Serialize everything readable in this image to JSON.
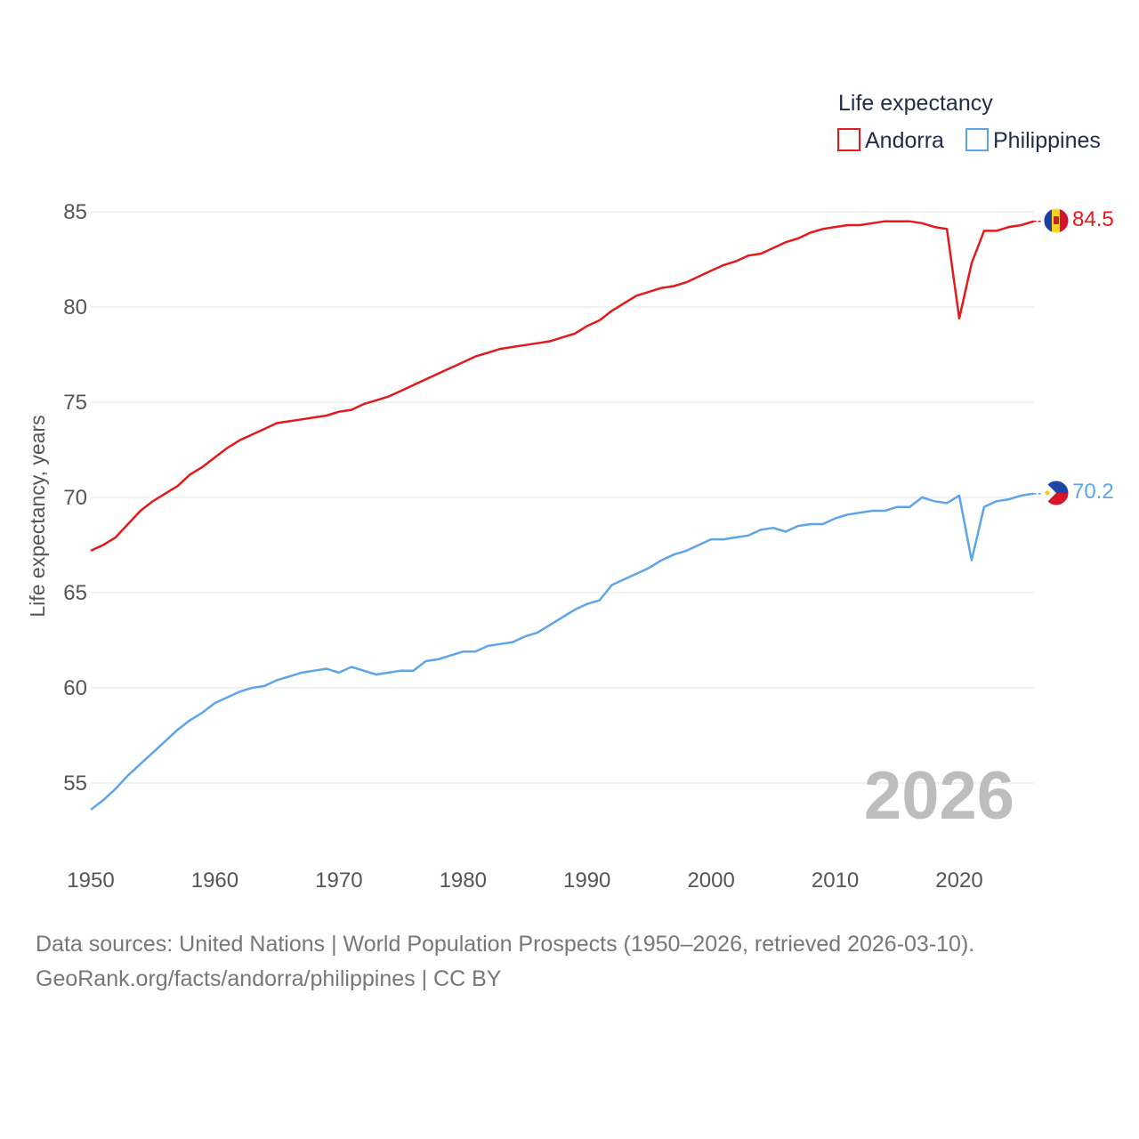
{
  "chart_data": {
    "type": "line",
    "title": "",
    "xlabel": "",
    "ylabel": "Life expectancy, years",
    "xlim": [
      1950,
      2026.5
    ],
    "ylim": [
      53,
      87
    ],
    "x_ticks": [
      1950,
      1960,
      1970,
      1980,
      1990,
      2000,
      2010,
      2020
    ],
    "y_ticks": [
      55,
      60,
      65,
      70,
      75,
      80,
      85
    ],
    "grid": true,
    "legend_title": "Life expectancy",
    "legend_position": "top-right",
    "current_year_label": "2026",
    "x": [
      1950,
      1951,
      1952,
      1953,
      1954,
      1955,
      1956,
      1957,
      1958,
      1959,
      1960,
      1961,
      1962,
      1963,
      1964,
      1965,
      1966,
      1967,
      1968,
      1969,
      1970,
      1971,
      1972,
      1973,
      1974,
      1975,
      1976,
      1977,
      1978,
      1979,
      1980,
      1981,
      1982,
      1983,
      1984,
      1985,
      1986,
      1987,
      1988,
      1989,
      1990,
      1991,
      1992,
      1993,
      1994,
      1995,
      1996,
      1997,
      1998,
      1999,
      2000,
      2001,
      2002,
      2003,
      2004,
      2005,
      2006,
      2007,
      2008,
      2009,
      2010,
      2011,
      2012,
      2013,
      2014,
      2015,
      2016,
      2017,
      2018,
      2019,
      2020,
      2021,
      2022,
      2023,
      2024,
      2025,
      2026
    ],
    "series": [
      {
        "name": "Andorra",
        "color": "#e31a1c",
        "end_label": "84.5",
        "flag": "andorra-flag-icon",
        "values": [
          67.2,
          67.5,
          67.9,
          68.6,
          69.3,
          69.8,
          70.2,
          70.6,
          71.2,
          71.6,
          72.1,
          72.6,
          73.0,
          73.3,
          73.6,
          73.9,
          74.0,
          74.1,
          74.2,
          74.3,
          74.5,
          74.6,
          74.9,
          75.1,
          75.3,
          75.6,
          75.9,
          76.2,
          76.5,
          76.8,
          77.1,
          77.4,
          77.6,
          77.8,
          77.9,
          78.0,
          78.1,
          78.2,
          78.4,
          78.6,
          79.0,
          79.3,
          79.8,
          80.2,
          80.6,
          80.8,
          81.0,
          81.1,
          81.3,
          81.6,
          81.9,
          82.2,
          82.4,
          82.7,
          82.8,
          83.1,
          83.4,
          83.6,
          83.9,
          84.1,
          84.2,
          84.3,
          84.3,
          84.4,
          84.5,
          84.5,
          84.5,
          84.4,
          84.2,
          84.1,
          79.4,
          82.3,
          84.0,
          84.0,
          84.2,
          84.3,
          84.5
        ]
      },
      {
        "name": "Philippines",
        "color": "#5da5e8",
        "end_label": "70.2",
        "flag": "philippines-flag-icon",
        "values": [
          53.6,
          54.1,
          54.7,
          55.4,
          56.0,
          56.6,
          57.2,
          57.8,
          58.3,
          58.7,
          59.2,
          59.5,
          59.8,
          60.0,
          60.1,
          60.4,
          60.6,
          60.8,
          60.9,
          61.0,
          60.8,
          61.1,
          60.9,
          60.7,
          60.8,
          60.9,
          60.9,
          61.4,
          61.5,
          61.7,
          61.9,
          61.9,
          62.2,
          62.3,
          62.4,
          62.7,
          62.9,
          63.3,
          63.7,
          64.1,
          64.4,
          64.6,
          65.4,
          65.7,
          66.0,
          66.3,
          66.7,
          67.0,
          67.2,
          67.5,
          67.8,
          67.8,
          67.9,
          68.0,
          68.3,
          68.4,
          68.2,
          68.5,
          68.6,
          68.6,
          68.9,
          69.1,
          69.2,
          69.3,
          69.3,
          69.5,
          69.5,
          70.0,
          69.8,
          69.7,
          70.1,
          66.7,
          69.5,
          69.8,
          69.9,
          70.1,
          70.2
        ]
      }
    ]
  },
  "footer": {
    "line1": "Data sources: United Nations | World Population Prospects (1950–2026, retrieved 2026-03-10).",
    "line2": "GeoRank.org/facts/andorra/philippines | CC BY"
  }
}
